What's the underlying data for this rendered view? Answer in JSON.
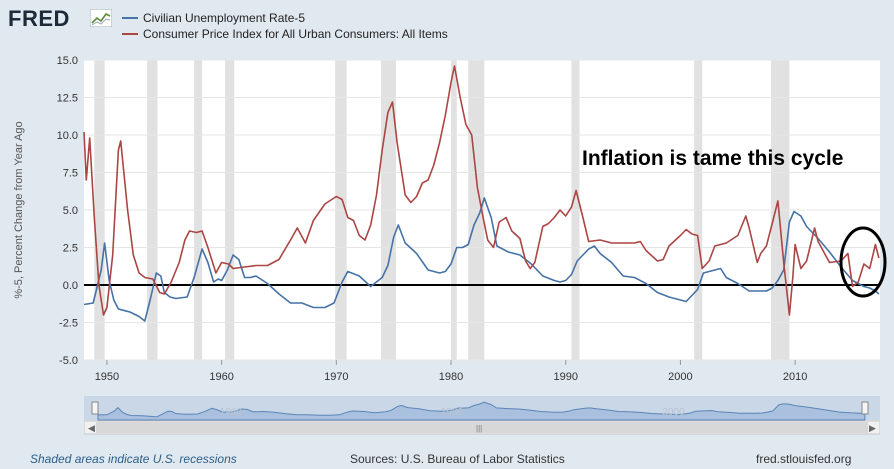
{
  "header": {
    "logo_text": "FRED"
  },
  "footer": {
    "recession_note": "Shaded areas indicate U.S. recessions",
    "sources": "Sources: U.S. Bureau of Labor Statistics",
    "site": "fred.stlouisfed.org"
  },
  "colors": {
    "unemployment": "#4572a7",
    "cpi": "#aa4643",
    "recession": "#e1e1e1",
    "background": "#e1e9f0"
  },
  "chart_data": {
    "type": "line",
    "ylabel": "%-5, Percent Change from Year Ago",
    "annotation": "Inflation is tame this cycle",
    "ylim": [
      -5,
      15
    ],
    "xlim": [
      1948,
      2017.4
    ],
    "yticks": [
      "15.0",
      "12.5",
      "10.0",
      "7.5",
      "5.0",
      "2.5",
      "0.0",
      "-2.5",
      "-5.0"
    ],
    "xticks": [
      "1950",
      "1960",
      "1970",
      "1980",
      "1990",
      "2000",
      "2010"
    ],
    "navigator_labels": [
      "1960",
      "1980",
      "2000"
    ],
    "recessions": [
      [
        1948.9,
        1949.8
      ],
      [
        1953.5,
        1954.4
      ],
      [
        1957.6,
        1958.3
      ],
      [
        1960.3,
        1961.1
      ],
      [
        1969.9,
        1970.9
      ],
      [
        1973.9,
        1975.2
      ],
      [
        1980.0,
        1980.5
      ],
      [
        1981.5,
        1982.9
      ],
      [
        1990.5,
        1991.2
      ],
      [
        2001.2,
        2001.9
      ],
      [
        2007.9,
        2009.5
      ]
    ],
    "series": [
      {
        "name": "Civilian Unemployment Rate-5",
        "x": [
          1948,
          1948.8,
          1949.5,
          1949.8,
          1950.2,
          1950.6,
          1951.0,
          1952.0,
          1952.8,
          1953.3,
          1953.8,
          1954.3,
          1954.7,
          1955.0,
          1955.5,
          1956.0,
          1957.0,
          1957.6,
          1958.3,
          1958.8,
          1959.3,
          1959.7,
          1960.0,
          1960.5,
          1961.0,
          1961.5,
          1962.0,
          1962.5,
          1963.0,
          1964.0,
          1965.0,
          1966.0,
          1967.0,
          1968.0,
          1969.0,
          1969.8,
          1970.5,
          1971.0,
          1972.0,
          1973.0,
          1974.0,
          1974.5,
          1975.0,
          1975.4,
          1976.0,
          1977.0,
          1978.0,
          1979.0,
          1979.5,
          1980.0,
          1980.5,
          1981.0,
          1981.5,
          1982.0,
          1982.5,
          1982.9,
          1983.5,
          1984.0,
          1985.0,
          1986.0,
          1987.0,
          1988.0,
          1989.0,
          1989.5,
          1990.0,
          1990.5,
          1991.0,
          1991.5,
          1992.0,
          1992.5,
          1993.0,
          1994.0,
          1995.0,
          1996.0,
          1997.0,
          1998.0,
          1999.0,
          2000.0,
          2000.5,
          2001.0,
          2001.5,
          2002.0,
          2002.5,
          2003.0,
          2003.5,
          2004.0,
          2005.0,
          2006.0,
          2007.0,
          2007.5,
          2008.0,
          2008.5,
          2009.0,
          2009.5,
          2009.9,
          2010.5,
          2011.0,
          2012.0,
          2013.0,
          2014.0,
          2015.0,
          2016.0,
          2016.5,
          2017.0,
          2017.3
        ],
        "values": [
          -1.3,
          -1.2,
          1.0,
          2.8,
          0.3,
          -1.0,
          -1.6,
          -1.8,
          -2.1,
          -2.4,
          -0.9,
          0.8,
          0.6,
          -0.5,
          -0.8,
          -0.9,
          -0.8,
          0.5,
          2.4,
          1.5,
          0.2,
          0.4,
          0.3,
          1.0,
          2.0,
          1.7,
          0.5,
          0.5,
          0.6,
          0.1,
          -0.6,
          -1.2,
          -1.2,
          -1.5,
          -1.5,
          -1.2,
          0.2,
          0.9,
          0.6,
          -0.1,
          0.5,
          1.3,
          3.2,
          4.0,
          2.8,
          2.1,
          1.0,
          0.8,
          0.9,
          1.4,
          2.5,
          2.5,
          2.7,
          4.0,
          4.8,
          5.8,
          4.5,
          2.6,
          2.2,
          2.0,
          1.4,
          0.6,
          0.3,
          0.2,
          0.3,
          0.7,
          1.6,
          2.0,
          2.4,
          2.6,
          2.1,
          1.5,
          0.6,
          0.5,
          0.1,
          -0.5,
          -0.8,
          -1.0,
          -1.1,
          -0.7,
          -0.3,
          0.8,
          0.9,
          1.0,
          1.1,
          0.5,
          0.1,
          -0.4,
          -0.4,
          -0.4,
          -0.2,
          0.3,
          1.0,
          4.2,
          4.9,
          4.6,
          3.9,
          3.1,
          2.2,
          1.2,
          0.3,
          -0.1,
          -0.2,
          -0.4,
          -0.6
        ]
      },
      {
        "name": "Consumer Price Index for All Urban Consumers: All Items",
        "x": [
          1948,
          1948.2,
          1948.5,
          1948.9,
          1949.3,
          1949.7,
          1950.0,
          1950.5,
          1951.0,
          1951.2,
          1951.8,
          1952.3,
          1952.8,
          1953.3,
          1954.0,
          1954.6,
          1955.0,
          1955.6,
          1956.3,
          1956.8,
          1957.2,
          1957.8,
          1958.3,
          1958.8,
          1959.5,
          1960.0,
          1960.6,
          1961.0,
          1962.0,
          1963.0,
          1964.0,
          1965.0,
          1966.0,
          1966.6,
          1967.3,
          1968.0,
          1969.0,
          1970.0,
          1970.5,
          1971.0,
          1971.5,
          1972.0,
          1972.5,
          1973.0,
          1973.5,
          1974.0,
          1974.5,
          1974.9,
          1975.3,
          1976.0,
          1976.5,
          1977.0,
          1977.5,
          1978.0,
          1978.5,
          1979.0,
          1979.5,
          1980.0,
          1980.3,
          1980.8,
          1981.3,
          1981.8,
          1982.3,
          1982.8,
          1983.2,
          1983.7,
          1984.2,
          1984.8,
          1985.3,
          1986.0,
          1986.5,
          1986.9,
          1987.3,
          1988.0,
          1988.5,
          1989.0,
          1989.5,
          1990.0,
          1990.5,
          1990.9,
          1991.5,
          1992.0,
          1993.0,
          1994.0,
          1995.0,
          1996.0,
          1996.5,
          1997.0,
          1998.0,
          1998.5,
          1999.0,
          2000.0,
          2000.5,
          2001.0,
          2001.5,
          2001.9,
          2002.5,
          2003.0,
          2004.0,
          2005.0,
          2005.7,
          2006.0,
          2006.7,
          2007.0,
          2007.5,
          2008.0,
          2008.5,
          2009.0,
          2009.5,
          2009.8,
          2010.0,
          2010.5,
          2011.0,
          2011.7,
          2012.0,
          2013.0,
          2014.0,
          2014.6,
          2015.0,
          2015.5,
          2016.0,
          2016.5,
          2017.0,
          2017.3
        ],
        "values": [
          10.2,
          7.0,
          9.8,
          4.5,
          0.0,
          -2.0,
          -1.5,
          2.0,
          9.0,
          9.6,
          5.0,
          2.0,
          0.8,
          0.5,
          0.4,
          -0.5,
          -0.6,
          0.2,
          1.5,
          3.0,
          3.6,
          3.5,
          3.6,
          2.5,
          0.8,
          1.5,
          1.4,
          1.1,
          1.2,
          1.3,
          1.3,
          1.7,
          3.0,
          3.8,
          2.8,
          4.3,
          5.4,
          5.9,
          5.7,
          4.5,
          4.3,
          3.3,
          3.0,
          4.0,
          6.0,
          9.0,
          11.5,
          12.2,
          9.5,
          6.0,
          5.5,
          5.9,
          6.8,
          7.0,
          8.0,
          9.5,
          11.3,
          13.5,
          14.6,
          12.5,
          10.7,
          10.0,
          6.5,
          4.5,
          3.0,
          2.5,
          4.2,
          4.5,
          3.6,
          3.1,
          1.6,
          1.1,
          1.5,
          3.9,
          4.1,
          4.5,
          5.0,
          4.6,
          5.2,
          6.3,
          4.5,
          2.9,
          3.0,
          2.8,
          2.8,
          2.8,
          2.9,
          2.3,
          1.6,
          1.7,
          2.6,
          3.3,
          3.7,
          3.4,
          3.3,
          1.1,
          1.6,
          2.6,
          2.8,
          3.3,
          4.6,
          3.8,
          1.5,
          2.1,
          2.6,
          4.1,
          5.6,
          1.5,
          -2.0,
          0.5,
          2.7,
          1.1,
          1.6,
          3.8,
          2.9,
          1.5,
          1.6,
          2.1,
          -0.1,
          0.2,
          1.4,
          1.1,
          2.7,
          1.8
        ]
      }
    ]
  }
}
